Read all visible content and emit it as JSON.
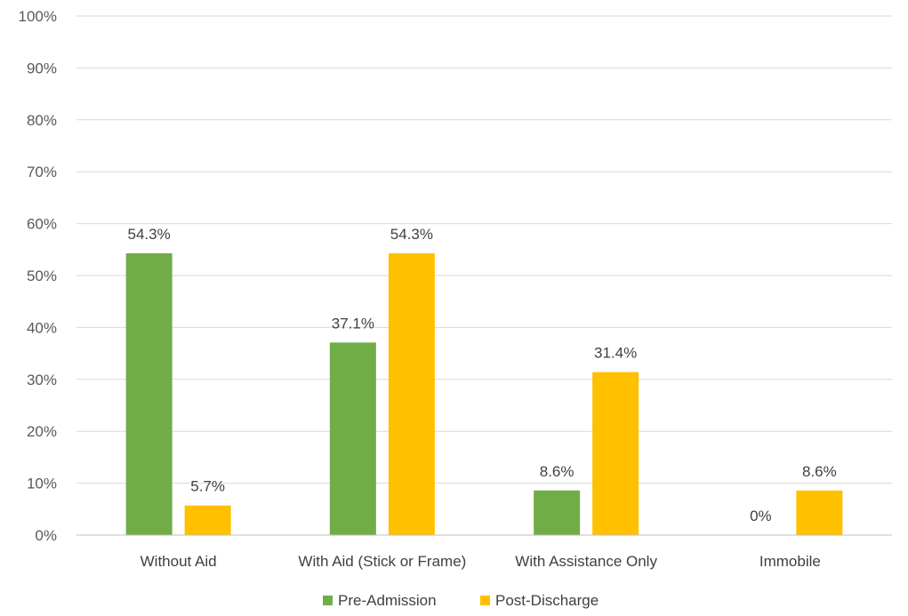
{
  "chart_data": {
    "type": "bar",
    "categories": [
      "Without Aid",
      "With Aid (Stick or Frame)",
      "With Assistance Only",
      "Immobile"
    ],
    "series": [
      {
        "name": "Pre-Admission",
        "color": "#70ad47",
        "values": [
          54.3,
          37.1,
          8.6,
          0
        ],
        "labels": [
          "54.3%",
          "37.1%",
          "8.6%",
          "0%"
        ]
      },
      {
        "name": "Post-Discharge",
        "color": "#ffc000",
        "values": [
          5.7,
          54.3,
          31.4,
          8.6
        ],
        "labels": [
          "5.7%",
          "54.3%",
          "31.4%",
          "8.6%"
        ]
      }
    ],
    "ylim": [
      0,
      100
    ],
    "yticks": [
      0,
      10,
      20,
      30,
      40,
      50,
      60,
      70,
      80,
      90,
      100
    ],
    "ytick_labels": [
      "0%",
      "10%",
      "20%",
      "30%",
      "40%",
      "50%",
      "60%",
      "70%",
      "80%",
      "90%",
      "100%"
    ],
    "grid": true,
    "legend_position": "bottom",
    "title": "",
    "xlabel": "",
    "ylabel": ""
  }
}
